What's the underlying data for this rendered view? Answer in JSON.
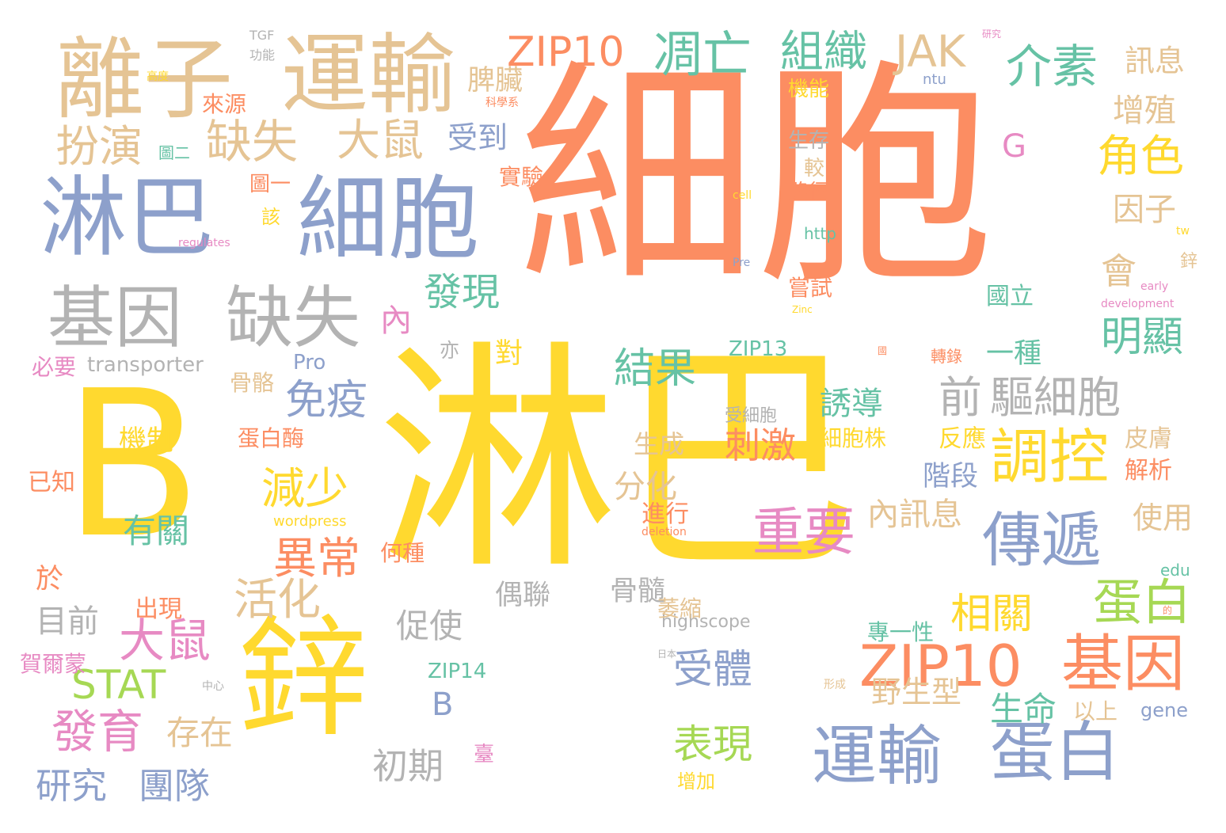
{
  "palette": {
    "orange": "#fc8d62",
    "yellow": "#ffd92f",
    "tan": "#e5c494",
    "blue": "#8da0cb",
    "green": "#66c2a5",
    "pink": "#e78ac3",
    "lime": "#a6d854",
    "gray": "#b3b3b3"
  },
  "words": [
    "細胞",
    "淋巴",
    "B",
    "離子",
    "鋅",
    "運輸",
    "淋巴",
    "細胞",
    "基因",
    "缺失",
    "ZIP10",
    "基因",
    "運輸",
    "蛋白",
    "凋亡",
    "組織",
    "JAK",
    "介素",
    "訊息",
    "扮演",
    "缺失",
    "大鼠",
    "調控",
    "傳遞",
    "角色",
    "重要",
    "前",
    "驅細胞",
    "STAT",
    "發育",
    "大鼠",
    "減少",
    "異常",
    "活化",
    "免疫",
    "結果",
    "明顯",
    "相關",
    "蛋白",
    "受體",
    "表現",
    "存在",
    "研究",
    "團隊",
    "目前",
    "發現",
    "內",
    "會",
    "增殖",
    "因子",
    "ZIP10",
    "脾臟",
    "受到",
    "G",
    "機制",
    "有關",
    "分化",
    "內訊息",
    "誘導",
    "刺激",
    "細胞株",
    "反應",
    "皮膚",
    "解析",
    "使用",
    "生命",
    "野生型",
    "初期",
    "促使",
    "骨髓",
    "偶聯",
    "出現",
    "賀爾蒙",
    "於",
    "已知",
    "必要",
    "transporter",
    "ZIP13",
    "ZIP14",
    "B",
    "highscope",
    "wordpress",
    "Pro",
    "蛋白酶",
    "生成",
    "進行",
    "來源",
    "機能",
    "生存",
    "路徑",
    "嘗試",
    "國立",
    "一種",
    "專一性",
    "轉錄",
    "對",
    "亦",
    "骨骼",
    "受細胞",
    "階段",
    "何種",
    "萎縮",
    "增加",
    "以上",
    "gene",
    "臺",
    "edu",
    "http",
    "ntu",
    "tw",
    "圖一",
    "圖二",
    "該",
    "較",
    "實驗",
    "TGF",
    "功能",
    "研究",
    "科學系",
    "高度",
    "cell",
    "regulates",
    "Pre",
    "deletion",
    "development",
    "early",
    "Zinc",
    "鋅",
    "國",
    "形成",
    "中心",
    "日本",
    "的"
  ]
}
